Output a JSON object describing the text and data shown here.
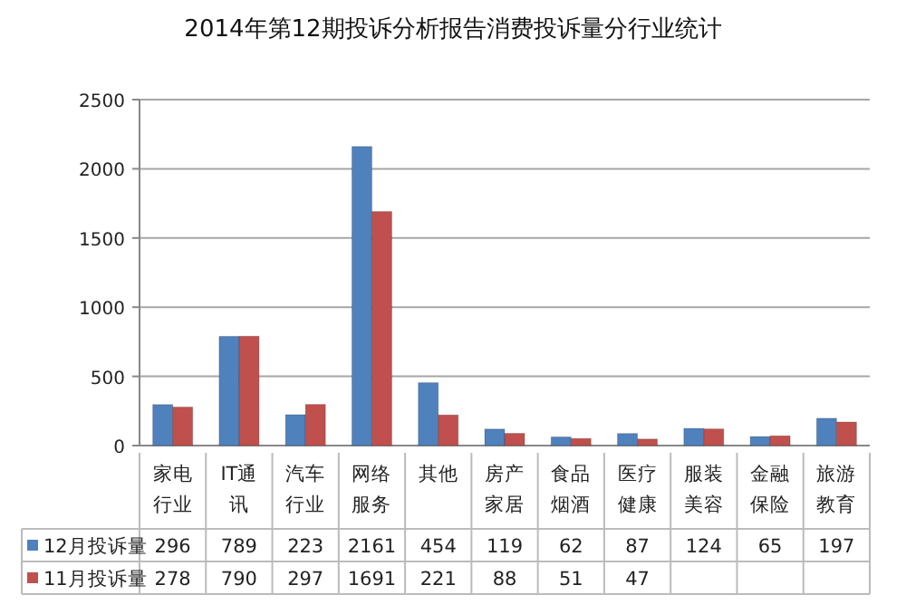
{
  "chart_data": {
    "type": "bar",
    "title": "2014年第12期投诉分析报告消费投诉量分行业统计",
    "categories": [
      "家电行业",
      "IT通讯",
      "汽车行业",
      "网络服务",
      "其他",
      "房产家居",
      "食品烟酒",
      "医疗健康",
      "服装美容",
      "金融保险",
      "旅游教育"
    ],
    "series": [
      {
        "name": "12月投诉量",
        "color": "#4f81bd",
        "values": [
          296,
          789,
          223,
          2161,
          454,
          119,
          62,
          87,
          124,
          65,
          197
        ],
        "value_labels": [
          "296",
          "789",
          "223",
          "2161",
          "454",
          "119",
          "62",
          "87",
          "124",
          "65",
          "197"
        ]
      },
      {
        "name": "11月投诉量",
        "color": "#c0504d",
        "values": [
          278,
          790,
          297,
          1691,
          221,
          88,
          51,
          47,
          120,
          70,
          170
        ],
        "value_labels": [
          "278",
          "790",
          "297",
          "1691",
          "221",
          "88",
          "51",
          "47",
          null,
          null,
          null
        ]
      }
    ],
    "ylim": [
      0,
      2500
    ],
    "yticks": [
      0,
      500,
      1000,
      1500,
      2000,
      2500
    ],
    "grid": "y",
    "legend": "bottom"
  }
}
